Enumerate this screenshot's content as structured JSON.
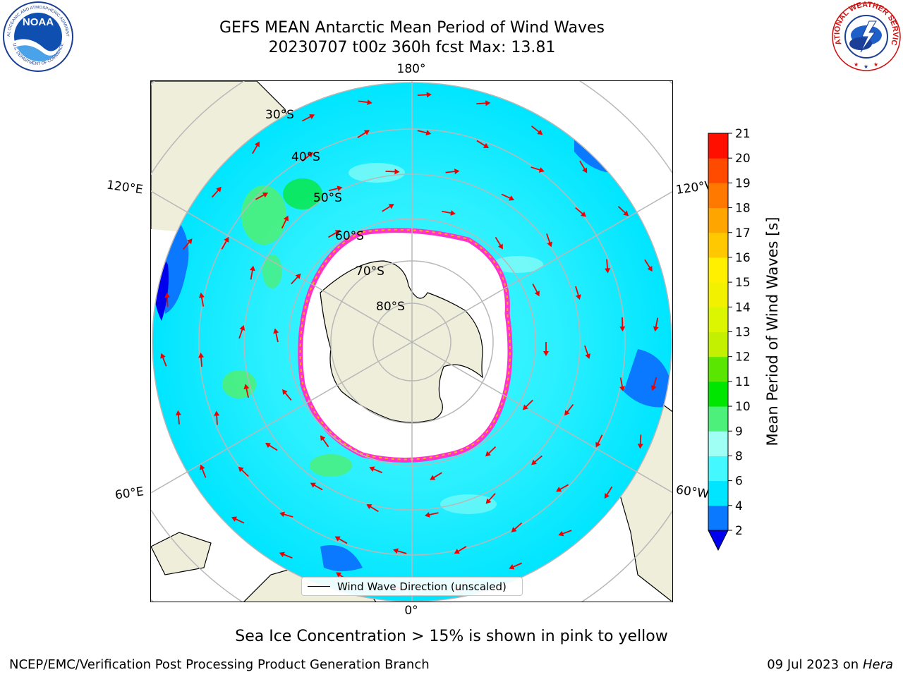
{
  "title": {
    "line1": "GEFS MEAN Antarctic Mean Period of Wind Waves",
    "line2": "20230707 t00z 360h fcst   Max: 13.81"
  },
  "logos": {
    "left": {
      "text": "NOAA",
      "ring_text": "NATIONAL OCEANIC AND ATMOSPHERIC ADMINISTRATION",
      "ring_text_bottom": "U.S. DEPARTMENT OF COMMERCE"
    },
    "right": {
      "ring_text": "NATIONAL WEATHER SERVICE"
    }
  },
  "map": {
    "projection": "south-polar-stereographic",
    "longitude_labels": {
      "top": "180°",
      "bottom": "0°",
      "left_upper": "120°E",
      "left_lower": "60°E",
      "right_upper": "120°W",
      "right_lower": "60°W"
    },
    "latitude_labels": [
      "30°S",
      "40°S",
      "50°S",
      "60°S",
      "70°S",
      "80°S"
    ],
    "colors": {
      "land": "#efeedb",
      "ice_shelf": "#ffffff",
      "sea_ice_edge": "#ff33cc",
      "sea_ice_inner": "#ffb300",
      "arrow": "#ee0000",
      "grid": "#b8b8b8"
    },
    "legend_label": "Wind Wave Direction (unscaled)"
  },
  "colorbar": {
    "label": "Mean Period of Wind Waves [s]",
    "ticks": [
      "2",
      "4",
      "6",
      "8",
      "9",
      "10",
      "11",
      "12",
      "13",
      "14",
      "15",
      "16",
      "17",
      "18",
      "19",
      "20",
      "21"
    ],
    "colors": [
      "#0a78ff",
      "#00e5ff",
      "#44f8ff",
      "#a0fff4",
      "#4cf07a",
      "#00e600",
      "#5ae600",
      "#c2f000",
      "#dcf500",
      "#f2f200",
      "#fff000",
      "#ffc800",
      "#ffa500",
      "#ff7800",
      "#ff4b00",
      "#ff0f00"
    ],
    "under_color": "#0000ee"
  },
  "footer": {
    "note": "Sea Ice Concentration > 15% is shown in pink to yellow",
    "left": "NCEP/EMC/Verification Post Processing Product Generation Branch",
    "right_prefix": "09 Jul 2023 on ",
    "right_machine": "Hera"
  }
}
